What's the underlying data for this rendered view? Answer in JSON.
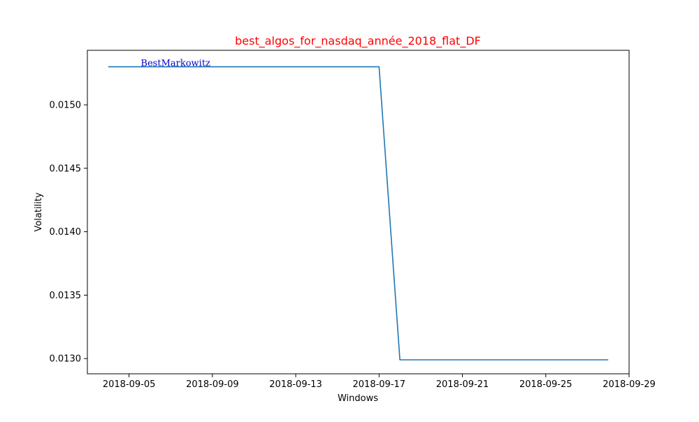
{
  "chart_data": {
    "type": "line",
    "title": "best_algos_for_nasdaq_année_2018_flat_DF",
    "xlabel": "Windows",
    "ylabel": "Volatility",
    "xlim": [
      "2018-09-03",
      "2018-09-29"
    ],
    "ylim": [
      0.01288,
      0.01543
    ],
    "xticks": [
      {
        "date": "2018-09-05",
        "label": "2018-09-05"
      },
      {
        "date": "2018-09-09",
        "label": "2018-09-09"
      },
      {
        "date": "2018-09-13",
        "label": "2018-09-13"
      },
      {
        "date": "2018-09-17",
        "label": "2018-09-17"
      },
      {
        "date": "2018-09-21",
        "label": "2018-09-21"
      },
      {
        "date": "2018-09-25",
        "label": "2018-09-25"
      },
      {
        "date": "2018-09-29",
        "label": "2018-09-29"
      }
    ],
    "yticks": [
      {
        "value": 0.013,
        "label": "0.0130"
      },
      {
        "value": 0.0135,
        "label": "0.0135"
      },
      {
        "value": 0.014,
        "label": "0.0140"
      },
      {
        "value": 0.0145,
        "label": "0.0145"
      },
      {
        "value": 0.015,
        "label": "0.0150"
      }
    ],
    "grid": false,
    "series": [
      {
        "color": "#1f77b4",
        "x": [
          "2018-09-04",
          "2018-09-17",
          "2018-09-18",
          "2018-09-28"
        ],
        "y": [
          0.0153,
          0.0153,
          0.01299,
          0.01299
        ]
      }
    ],
    "annotations": [
      {
        "text": "BestMarkowitz",
        "x": "2018-09-06",
        "y": 0.0153,
        "color": "#0000cc"
      }
    ],
    "colors": {
      "title": "#ff0000",
      "line": "#1f77b4"
    }
  }
}
